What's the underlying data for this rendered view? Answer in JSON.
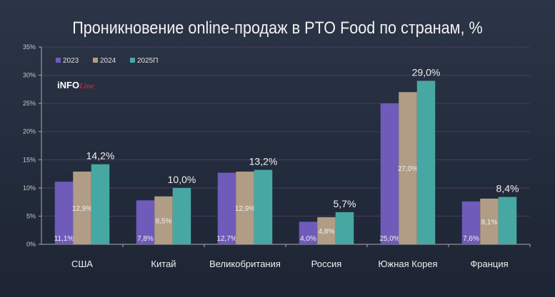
{
  "chart_data": {
    "type": "bar",
    "title": "Проникновение online-продаж в PTO Food по странам, %",
    "categories": [
      "США",
      "Китай",
      "Великобритания",
      "Россия",
      "Южная Корея",
      "Франция"
    ],
    "series": [
      {
        "name": "2023",
        "color": "#6f5bb9",
        "values": [
          11.1,
          7.8,
          12.7,
          4.0,
          25.0,
          7.6
        ],
        "labels": [
          "11,1%",
          "7,8%",
          "12,7%",
          "4,0%",
          "25,0%",
          "7,6%"
        ]
      },
      {
        "name": "2024",
        "color": "#b19d85",
        "values": [
          12.9,
          8.5,
          12.9,
          4.8,
          27.0,
          8.1
        ],
        "labels": [
          "12,9%",
          "8,5%",
          "12,9%",
          "4,8%",
          "27,0%",
          "8,1%"
        ]
      },
      {
        "name": "2025П",
        "color": "#47a8a3",
        "values": [
          14.2,
          10.0,
          13.2,
          5.7,
          29.0,
          8.4
        ],
        "labels": [
          "14,2%",
          "10,0%",
          "13,2%",
          "5,7%",
          "29,0%",
          "8,4%"
        ]
      }
    ],
    "ylim": [
      0,
      35
    ],
    "yticks": [
      "0%",
      "5%",
      "10%",
      "15%",
      "20%",
      "25%",
      "30%",
      "35%"
    ],
    "grid": true,
    "legend": "top-left"
  },
  "logo": {
    "text1": "iNFO",
    "text2": "Line"
  }
}
